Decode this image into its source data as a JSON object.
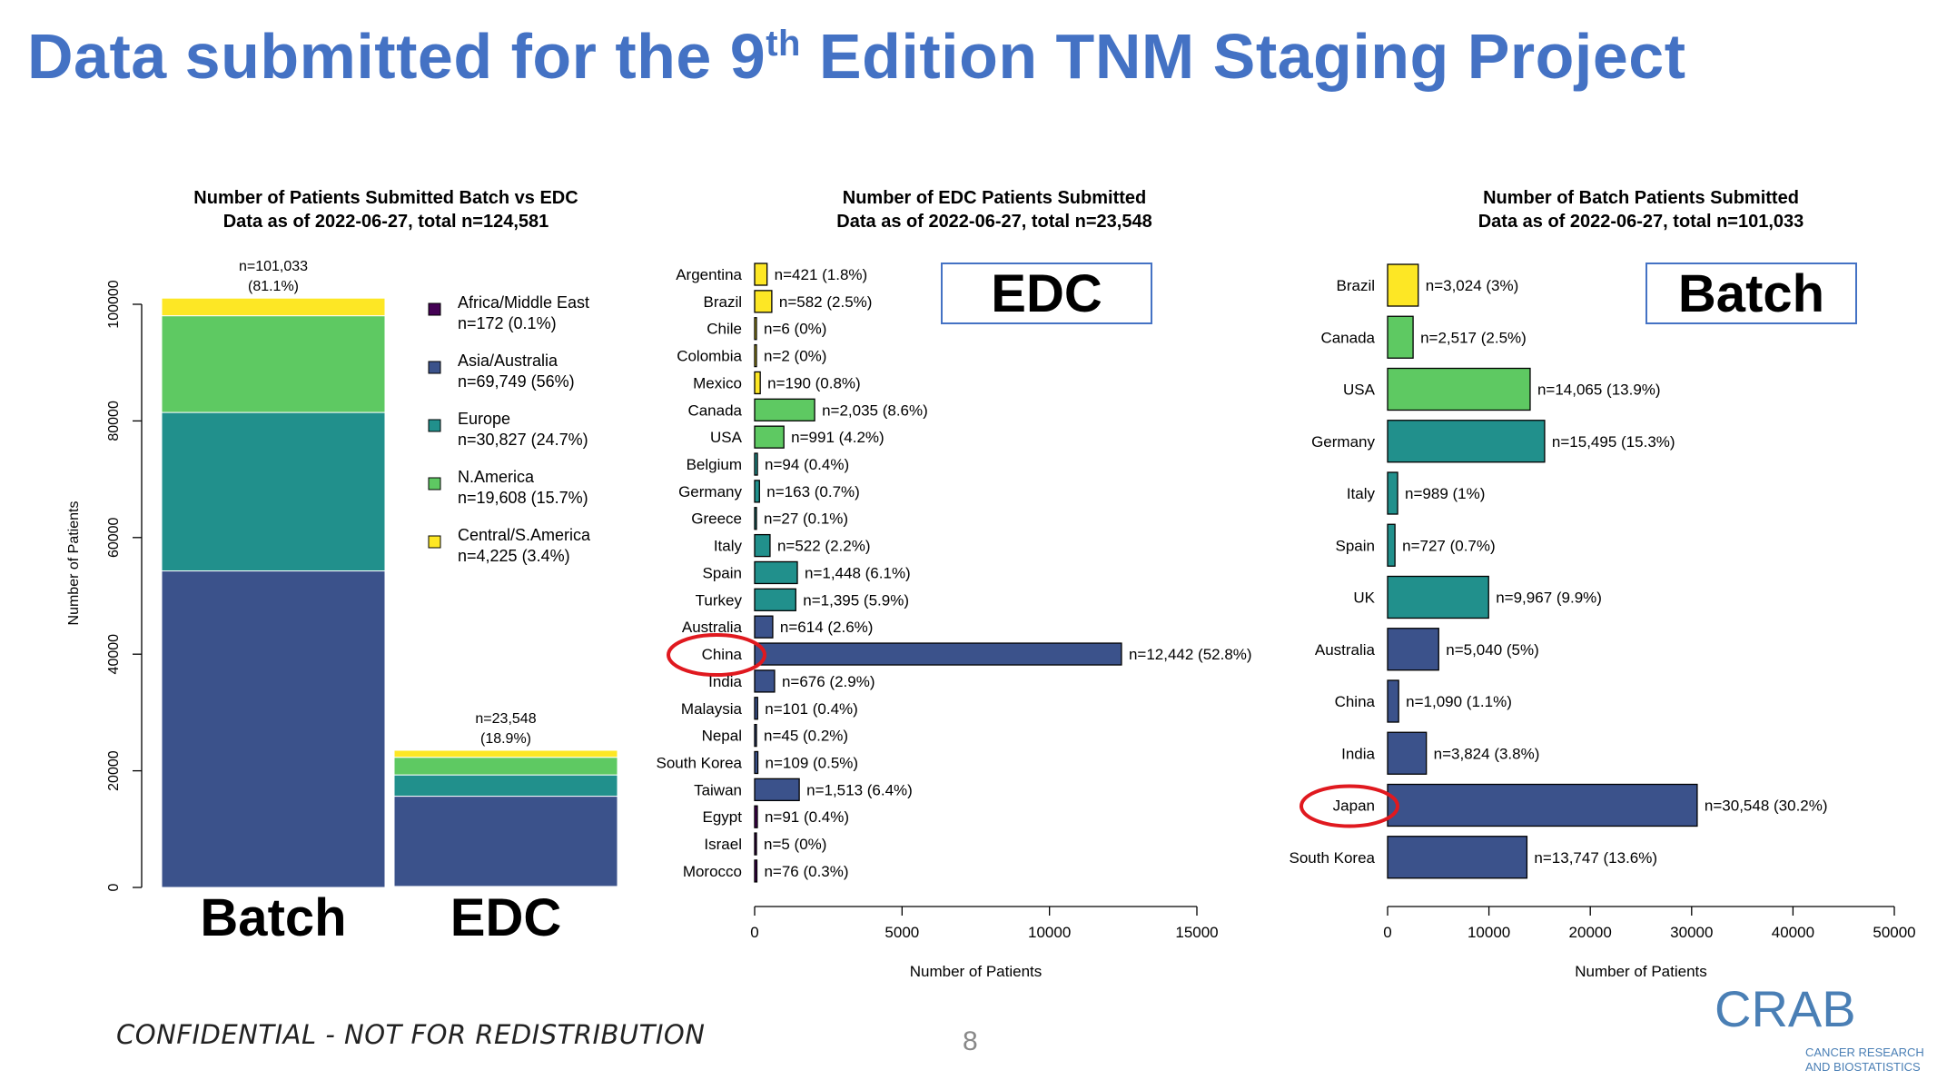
{
  "title": {
    "main": "Data submitted for the 9",
    "sup": "th",
    "rest": " Edition TNM Staging Project"
  },
  "footer": {
    "confidential": "CONFIDENTIAL - NOT FOR REDISTRIBUTION",
    "page": "8"
  },
  "logo": {
    "letters": "CRAB",
    "line1": "CANCER RESEARCH",
    "line2": "AND BIOSTATISTICS"
  },
  "colors": {
    "title": "#4472c4",
    "africa": "#440154",
    "asia": "#3b528b",
    "europe": "#21908c",
    "namerica": "#5ec962",
    "csamerica": "#fde725",
    "highlight": "#e0191f"
  },
  "chart_data": [
    {
      "type": "bar",
      "stacked": true,
      "title": "Number of Patients Submitted Batch vs EDC",
      "subtitle": "Data as of 2022-06-27, total n=124,581",
      "ylabel": "Number of Patients",
      "ylim": [
        0,
        100000
      ],
      "yticks": [
        "0",
        "20000",
        "40000",
        "60000",
        "80000",
        "100000"
      ],
      "categories": [
        "Batch",
        "EDC"
      ],
      "series": [
        {
          "name": "Africa/Middle East",
          "color": "#440154",
          "values": [
            0,
            172
          ]
        },
        {
          "name": "Asia/Australia",
          "color": "#3b528b",
          "values": [
            54277,
            15472
          ]
        },
        {
          "name": "Europe",
          "color": "#21908c",
          "values": [
            27176,
            3651
          ]
        },
        {
          "name": "N.America",
          "color": "#5ec962",
          "values": [
            16582,
            3026
          ]
        },
        {
          "name": "Central/S.America",
          "color": "#fde725",
          "values": [
            3024,
            1201
          ]
        }
      ],
      "bar_labels": [
        [
          "n=101,033",
          "(81.1%)"
        ],
        [
          "n=23,548",
          "(18.9%)"
        ]
      ],
      "legend": [
        {
          "label": "Africa/Middle East",
          "sub": "n=172 (0.1%)",
          "color": "#440154"
        },
        {
          "label": "Asia/Australia",
          "sub": "n=69,749 (56%)",
          "color": "#3b528b"
        },
        {
          "label": "Europe",
          "sub": "n=30,827 (24.7%)",
          "color": "#21908c"
        },
        {
          "label": "N.America",
          "sub": "n=19,608 (15.7%)",
          "color": "#5ec962"
        },
        {
          "label": "Central/S.America",
          "sub": "n=4,225 (3.4%)",
          "color": "#fde725"
        }
      ],
      "legend_position": "right"
    },
    {
      "type": "bar",
      "orientation": "horizontal",
      "title": "Number of EDC Patients Submitted",
      "subtitle": "Data as of 2022-06-27, total n=23,548",
      "tag": "EDC",
      "xlabel": "Number of Patients",
      "xlim": [
        0,
        15000
      ],
      "xticks": [
        "0",
        "5000",
        "10000",
        "15000"
      ],
      "highlight": "China",
      "bars": [
        {
          "country": "Argentina",
          "value": 421,
          "label": "n=421 (1.8%)",
          "region": "csamerica"
        },
        {
          "country": "Brazil",
          "value": 582,
          "label": "n=582 (2.5%)",
          "region": "csamerica"
        },
        {
          "country": "Chile",
          "value": 6,
          "label": "n=6 (0%)",
          "region": "csamerica"
        },
        {
          "country": "Colombia",
          "value": 2,
          "label": "n=2 (0%)",
          "region": "csamerica"
        },
        {
          "country": "Mexico",
          "value": 190,
          "label": "n=190 (0.8%)",
          "region": "csamerica"
        },
        {
          "country": "Canada",
          "value": 2035,
          "label": "n=2,035 (8.6%)",
          "region": "namerica"
        },
        {
          "country": "USA",
          "value": 991,
          "label": "n=991 (4.2%)",
          "region": "namerica"
        },
        {
          "country": "Belgium",
          "value": 94,
          "label": "n=94 (0.4%)",
          "region": "europe"
        },
        {
          "country": "Germany",
          "value": 163,
          "label": "n=163 (0.7%)",
          "region": "europe"
        },
        {
          "country": "Greece",
          "value": 27,
          "label": "n=27 (0.1%)",
          "region": "europe"
        },
        {
          "country": "Italy",
          "value": 522,
          "label": "n=522 (2.2%)",
          "region": "europe"
        },
        {
          "country": "Spain",
          "value": 1448,
          "label": "n=1,448 (6.1%)",
          "region": "europe"
        },
        {
          "country": "Turkey",
          "value": 1395,
          "label": "n=1,395 (5.9%)",
          "region": "europe"
        },
        {
          "country": "Australia",
          "value": 614,
          "label": "n=614 (2.6%)",
          "region": "asia"
        },
        {
          "country": "China",
          "value": 12442,
          "label": "n=12,442 (52.8%)",
          "region": "asia"
        },
        {
          "country": "India",
          "value": 676,
          "label": "n=676 (2.9%)",
          "region": "asia"
        },
        {
          "country": "Malaysia",
          "value": 101,
          "label": "n=101 (0.4%)",
          "region": "asia"
        },
        {
          "country": "Nepal",
          "value": 45,
          "label": "n=45 (0.2%)",
          "region": "asia"
        },
        {
          "country": "South Korea",
          "value": 109,
          "label": "n=109 (0.5%)",
          "region": "asia"
        },
        {
          "country": "Taiwan",
          "value": 1513,
          "label": "n=1,513 (6.4%)",
          "region": "asia"
        },
        {
          "country": "Egypt",
          "value": 91,
          "label": "n=91 (0.4%)",
          "region": "africa"
        },
        {
          "country": "Israel",
          "value": 5,
          "label": "n=5 (0%)",
          "region": "africa"
        },
        {
          "country": "Morocco",
          "value": 76,
          "label": "n=76 (0.3%)",
          "region": "africa"
        }
      ]
    },
    {
      "type": "bar",
      "orientation": "horizontal",
      "title": "Number of Batch Patients Submitted",
      "subtitle": "Data as of 2022-06-27, total n=101,033",
      "tag": "Batch",
      "xlabel": "Number of Patients",
      "xlim": [
        0,
        50000
      ],
      "xticks": [
        "0",
        "10000",
        "20000",
        "30000",
        "40000",
        "50000"
      ],
      "highlight": "Japan",
      "bars": [
        {
          "country": "Brazil",
          "value": 3024,
          "label": "n=3,024 (3%)",
          "region": "csamerica"
        },
        {
          "country": "Canada",
          "value": 2517,
          "label": "n=2,517 (2.5%)",
          "region": "namerica"
        },
        {
          "country": "USA",
          "value": 14065,
          "label": "n=14,065 (13.9%)",
          "region": "namerica"
        },
        {
          "country": "Germany",
          "value": 15495,
          "label": "n=15,495 (15.3%)",
          "region": "europe"
        },
        {
          "country": "Italy",
          "value": 989,
          "label": "n=989 (1%)",
          "region": "europe"
        },
        {
          "country": "Spain",
          "value": 727,
          "label": "n=727 (0.7%)",
          "region": "europe"
        },
        {
          "country": "UK",
          "value": 9967,
          "label": "n=9,967 (9.9%)",
          "region": "europe"
        },
        {
          "country": "Australia",
          "value": 5040,
          "label": "n=5,040 (5%)",
          "region": "asia"
        },
        {
          "country": "China",
          "value": 1090,
          "label": "n=1,090 (1.1%)",
          "region": "asia"
        },
        {
          "country": "India",
          "value": 3824,
          "label": "n=3,824 (3.8%)",
          "region": "asia"
        },
        {
          "country": "Japan",
          "value": 30548,
          "label": "n=30,548 (30.2%)",
          "region": "asia"
        },
        {
          "country": "South Korea",
          "value": 13747,
          "label": "n=13,747 (13.6%)",
          "region": "asia"
        }
      ]
    }
  ]
}
